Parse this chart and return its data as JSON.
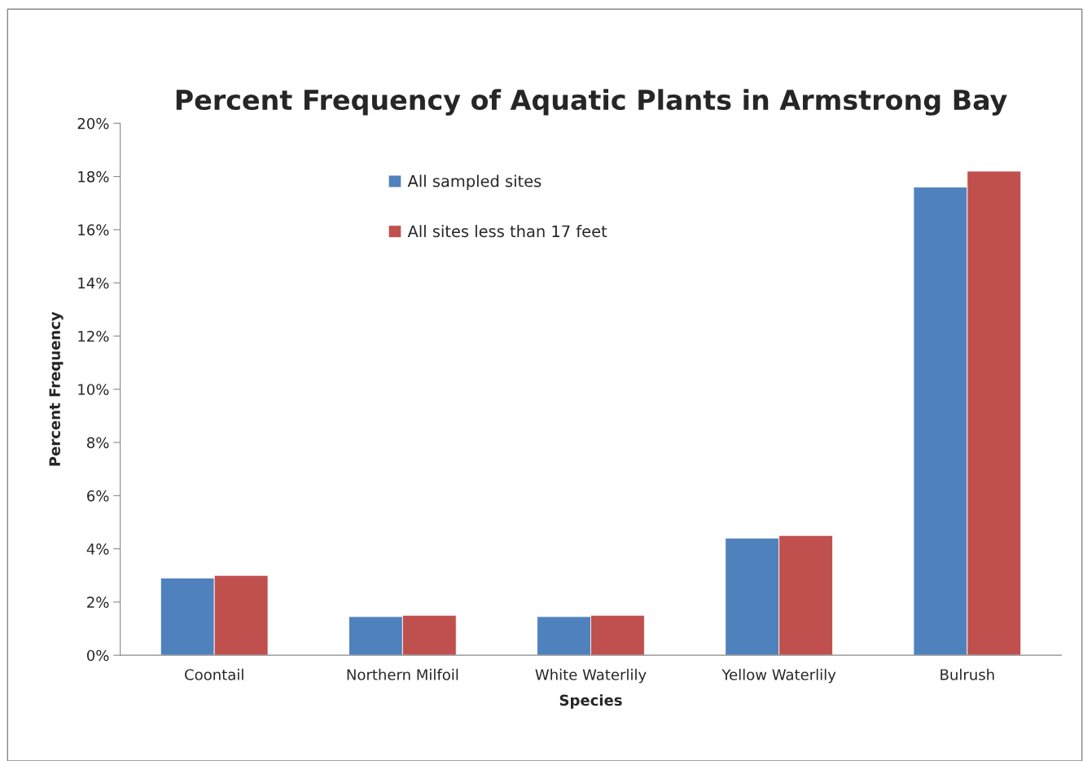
{
  "chart_data": {
    "type": "bar",
    "title": "Percent Frequency of Aquatic Plants in Armstrong Bay",
    "xlabel": "Species",
    "ylabel": "Percent Frequency",
    "categories": [
      "Coontail",
      "Northern Milfoil",
      "White Waterlily",
      "Yellow Waterlily",
      "Bulrush"
    ],
    "series": [
      {
        "name": "All sampled sites",
        "color": "#4f81bd",
        "values": [
          2.9,
          1.45,
          1.45,
          4.4,
          17.6
        ]
      },
      {
        "name": "All sites less than 17 feet",
        "color": "#c0504d",
        "values": [
          3.0,
          1.5,
          1.5,
          4.5,
          18.2
        ]
      }
    ],
    "ylim": [
      0,
      20
    ],
    "yticks": [
      {
        "value": 0,
        "label": "0%"
      },
      {
        "value": 2,
        "label": "2%"
      },
      {
        "value": 4,
        "label": "4%"
      },
      {
        "value": 6,
        "label": "6%"
      },
      {
        "value": 8,
        "label": "8%"
      },
      {
        "value": 10,
        "label": "10%"
      },
      {
        "value": 12,
        "label": "12%"
      },
      {
        "value": 14,
        "label": "14%"
      },
      {
        "value": 16,
        "label": "16%"
      },
      {
        "value": 18,
        "label": "18%"
      },
      {
        "value": 20,
        "label": "20%"
      }
    ],
    "grid": false,
    "legend": "top"
  }
}
